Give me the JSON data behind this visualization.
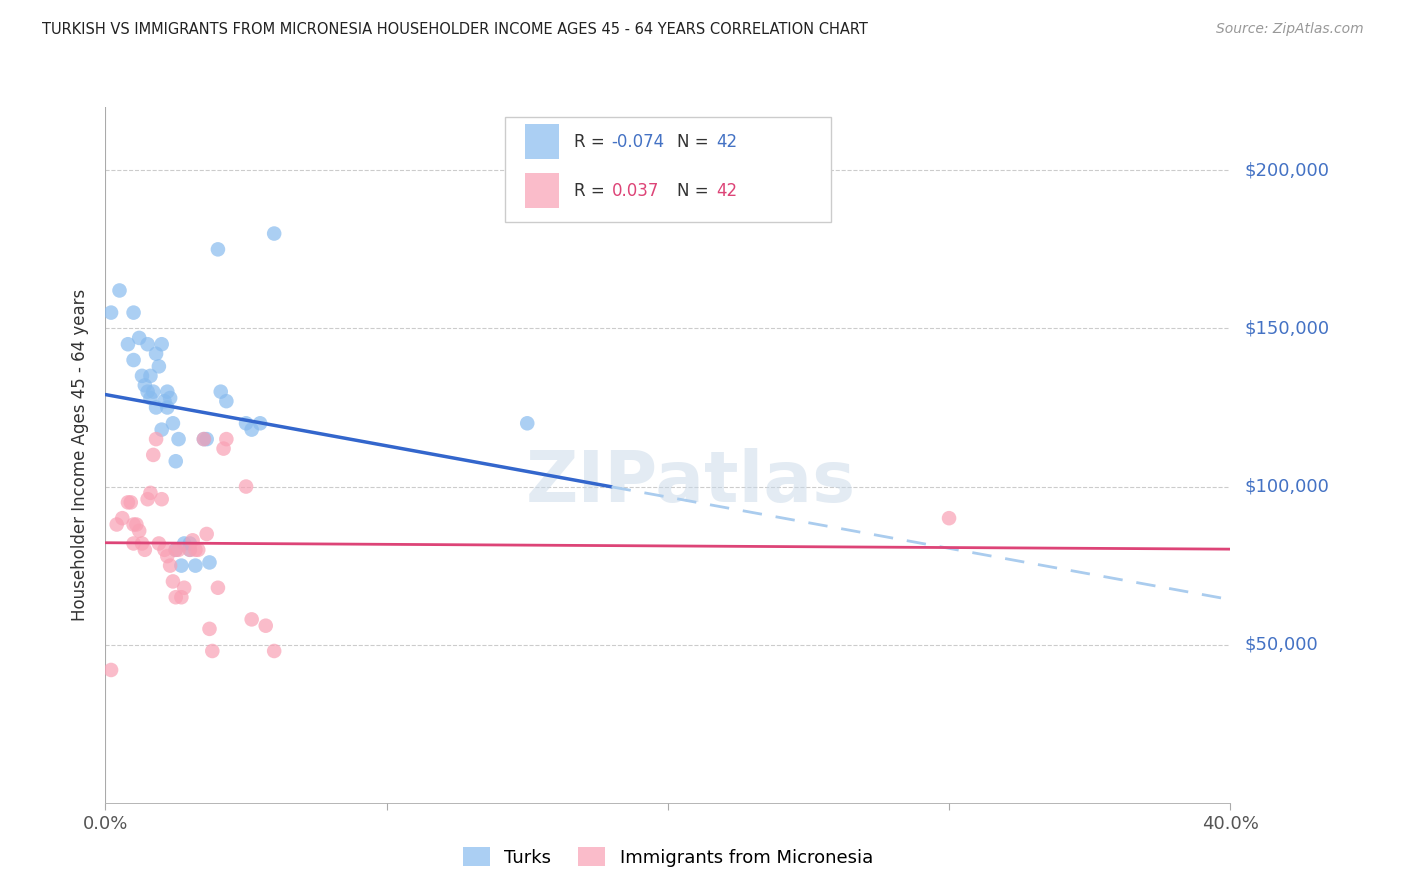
{
  "title": "TURKISH VS IMMIGRANTS FROM MICRONESIA HOUSEHOLDER INCOME AGES 45 - 64 YEARS CORRELATION CHART",
  "source": "Source: ZipAtlas.com",
  "ylabel": "Householder Income Ages 45 - 64 years",
  "xmin": 0.0,
  "xmax": 0.4,
  "ymin": 0,
  "ymax": 220000,
  "yticks": [
    50000,
    100000,
    150000,
    200000
  ],
  "ytick_labels": [
    "$50,000",
    "$100,000",
    "$150,000",
    "$200,000"
  ],
  "legend_R_blue": "-0.074",
  "legend_N_blue": "42",
  "legend_R_pink": "0.037",
  "legend_N_pink": "42",
  "blue_color": "#88bbee",
  "pink_color": "#f9a0b4",
  "blue_line_color": "#3366cc",
  "pink_line_color": "#dd4477",
  "blue_dashed_color": "#aaccee",
  "grid_color": "#cccccc",
  "axis_color": "#aaaaaa",
  "right_label_color": "#4472c4",
  "title_color": "#222222",
  "source_color": "#999999",
  "turks_x": [
    0.002,
    0.005,
    0.008,
    0.01,
    0.01,
    0.012,
    0.013,
    0.014,
    0.015,
    0.015,
    0.016,
    0.016,
    0.017,
    0.018,
    0.018,
    0.019,
    0.02,
    0.02,
    0.021,
    0.022,
    0.022,
    0.023,
    0.024,
    0.025,
    0.025,
    0.026,
    0.027,
    0.028,
    0.03,
    0.03,
    0.032,
    0.035,
    0.036,
    0.037,
    0.04,
    0.041,
    0.043,
    0.05,
    0.052,
    0.055,
    0.06,
    0.15
  ],
  "turks_y": [
    155000,
    162000,
    145000,
    155000,
    140000,
    147000,
    135000,
    132000,
    145000,
    130000,
    128000,
    135000,
    130000,
    142000,
    125000,
    138000,
    145000,
    118000,
    127000,
    130000,
    125000,
    128000,
    120000,
    108000,
    80000,
    115000,
    75000,
    82000,
    80000,
    82000,
    75000,
    115000,
    115000,
    76000,
    175000,
    130000,
    127000,
    120000,
    118000,
    120000,
    180000,
    120000
  ],
  "micronesia_x": [
    0.002,
    0.004,
    0.006,
    0.008,
    0.009,
    0.01,
    0.01,
    0.011,
    0.012,
    0.013,
    0.014,
    0.015,
    0.016,
    0.017,
    0.018,
    0.019,
    0.02,
    0.021,
    0.022,
    0.023,
    0.024,
    0.025,
    0.025,
    0.026,
    0.027,
    0.028,
    0.03,
    0.031,
    0.032,
    0.033,
    0.035,
    0.036,
    0.037,
    0.038,
    0.04,
    0.042,
    0.043,
    0.05,
    0.052,
    0.057,
    0.06,
    0.3
  ],
  "micronesia_y": [
    42000,
    88000,
    90000,
    95000,
    95000,
    88000,
    82000,
    88000,
    86000,
    82000,
    80000,
    96000,
    98000,
    110000,
    115000,
    82000,
    96000,
    80000,
    78000,
    75000,
    70000,
    65000,
    80000,
    80000,
    65000,
    68000,
    80000,
    83000,
    80000,
    80000,
    115000,
    85000,
    55000,
    48000,
    68000,
    112000,
    115000,
    100000,
    58000,
    56000,
    48000,
    90000
  ],
  "blue_line_x_solid_end": 0.18,
  "watermark_text": "ZIPatlas",
  "watermark_color": "#c8d8e8",
  "watermark_alpha": 0.5
}
